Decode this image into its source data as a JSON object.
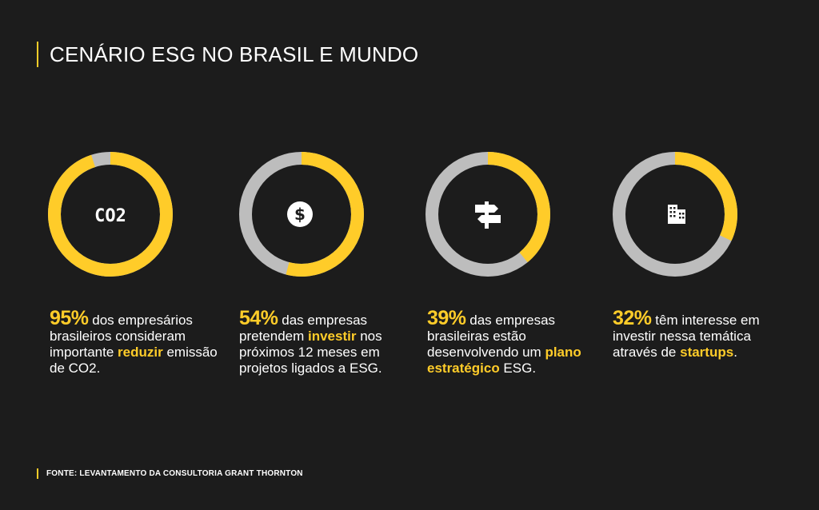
{
  "title": "CENÁRIO ESG NO BRASIL E MUNDO",
  "footer": "FONTE: LEVANTAMENTO DA CONSULTORIA GRANT THORNTON",
  "colors": {
    "accent": "#ffcc29",
    "track": "#bdbdbd",
    "background": "#1c1c1c",
    "text": "#ffffff"
  },
  "chart_data": [
    {
      "type": "pie",
      "variant": "donut",
      "value": 95,
      "icon": "co2-icon",
      "icon_label": "CO2",
      "stat": {
        "pct": "95%",
        "pre": " dos empresários brasileiros consideram importante ",
        "highlight": "reduzir",
        "post": " emissão de CO2."
      }
    },
    {
      "type": "pie",
      "variant": "donut",
      "value": 54,
      "icon": "dollar-icon",
      "stat": {
        "pct": "54%",
        "pre": " das empresas pretendem ",
        "highlight": "investir",
        "post": " nos próximos 12 meses em projetos ligados a ESG."
      }
    },
    {
      "type": "pie",
      "variant": "donut",
      "value": 39,
      "icon": "signpost-icon",
      "stat": {
        "pct": "39%",
        "pre": " das empresas brasileiras estão desenvolvendo um ",
        "highlight": "plano estratégico",
        "post": " ESG."
      }
    },
    {
      "type": "pie",
      "variant": "donut",
      "value": 32,
      "icon": "buildings-icon",
      "stat": {
        "pct": "32%",
        "pre": " têm interesse em investir nessa temática através de ",
        "highlight": "startups",
        "post": "."
      }
    }
  ]
}
